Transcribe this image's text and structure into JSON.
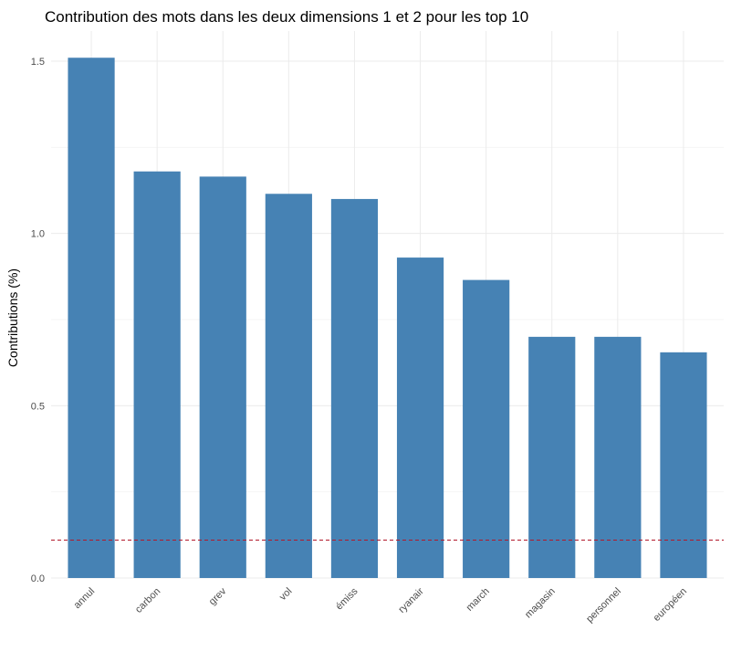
{
  "chart_data": {
    "type": "bar",
    "title": "Contribution des mots  dans les deux  dimensions 1 et 2 pour les top 10",
    "xlabel": "",
    "ylabel": "Contributions (%)",
    "categories": [
      "annul",
      "carbon",
      "grev",
      "vol",
      "émiss",
      "ryanair",
      "march",
      "magasin",
      "personnel",
      "européen"
    ],
    "values": [
      1.51,
      1.18,
      1.165,
      1.115,
      1.1,
      0.93,
      0.865,
      0.7,
      0.7,
      0.655
    ],
    "ylim": [
      0,
      1.5
    ],
    "yticks": [
      "0.0",
      "0.5",
      "1.0",
      "1.5"
    ],
    "reference_line": {
      "value": 0.11,
      "color": "#b2182b",
      "style": "dashed"
    },
    "bar_color": "#4682b4",
    "grid": true,
    "legend": "none"
  }
}
